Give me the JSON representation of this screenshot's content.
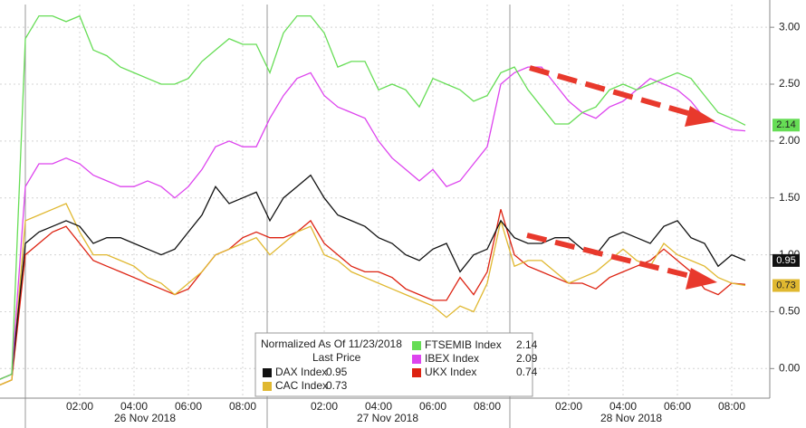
{
  "chart_data": {
    "type": "line",
    "categories": [
      null,
      null,
      null,
      null,
      null,
      null,
      "02:00",
      null,
      null,
      null,
      "04:00",
      null,
      null,
      null,
      "06:00",
      null,
      null,
      null,
      "08:00",
      null,
      null,
      null,
      null,
      null,
      "02:00",
      null,
      null,
      null,
      "04:00",
      null,
      null,
      null,
      "06:00",
      null,
      null,
      null,
      "08:00",
      null,
      null,
      null,
      null,
      null,
      "02:00",
      null,
      null,
      null,
      "04:00",
      null,
      null,
      null,
      "06:00",
      null,
      null,
      null,
      "08:00",
      null
    ],
    "dates": [
      "26 Nov 2018",
      "27 Nov 2018",
      "28 Nov 2018"
    ],
    "legend_title": "Normalized As Of 11/23/2018",
    "legend_subtitle": "Last Price",
    "series": [
      {
        "name": "FTSEMIB Index",
        "color": "#66dd55",
        "values": [
          -0.1,
          -0.05,
          2.9,
          3.1,
          3.1,
          3.05,
          3.1,
          2.8,
          2.75,
          2.65,
          2.6,
          2.55,
          2.5,
          2.5,
          2.55,
          2.7,
          2.8,
          2.9,
          2.85,
          2.85,
          2.6,
          2.95,
          3.1,
          3.1,
          2.95,
          2.65,
          2.7,
          2.7,
          2.45,
          2.5,
          2.45,
          2.3,
          2.55,
          2.5,
          2.45,
          2.35,
          2.4,
          2.6,
          2.65,
          2.45,
          2.3,
          2.15,
          2.15,
          2.25,
          2.3,
          2.45,
          2.5,
          2.45,
          2.5,
          2.55,
          2.6,
          2.55,
          2.4,
          2.25,
          2.2,
          2.14
        ]
      },
      {
        "name": "IBEX Index",
        "color": "#dd44ee",
        "values": [
          -0.1,
          -0.05,
          1.6,
          1.8,
          1.8,
          1.85,
          1.8,
          1.7,
          1.65,
          1.6,
          1.6,
          1.65,
          1.6,
          1.5,
          1.6,
          1.75,
          1.95,
          2.0,
          1.95,
          1.95,
          2.2,
          2.4,
          2.55,
          2.6,
          2.4,
          2.3,
          2.25,
          2.2,
          2.0,
          1.85,
          1.75,
          1.65,
          1.75,
          1.6,
          1.65,
          1.8,
          1.95,
          2.5,
          2.6,
          2.65,
          2.65,
          2.5,
          2.35,
          2.25,
          2.2,
          2.3,
          2.35,
          2.45,
          2.55,
          2.5,
          2.45,
          2.35,
          2.2,
          2.15,
          2.1,
          2.09
        ]
      },
      {
        "name": "DAX Index",
        "color": "#111111",
        "values": [
          -0.1,
          -0.05,
          1.1,
          1.2,
          1.25,
          1.3,
          1.25,
          1.1,
          1.15,
          1.15,
          1.1,
          1.05,
          1.0,
          1.05,
          1.2,
          1.35,
          1.6,
          1.45,
          1.5,
          1.55,
          1.3,
          1.5,
          1.6,
          1.7,
          1.5,
          1.35,
          1.3,
          1.25,
          1.15,
          1.1,
          1.0,
          0.95,
          1.05,
          1.1,
          0.85,
          1.0,
          1.05,
          1.3,
          1.15,
          1.1,
          1.1,
          1.15,
          1.15,
          1.05,
          1.0,
          1.15,
          1.2,
          1.15,
          1.1,
          1.25,
          1.3,
          1.15,
          1.1,
          0.9,
          1.0,
          0.95
        ]
      },
      {
        "name": "CAC Index",
        "color": "#e0b830",
        "values": [
          -0.15,
          -0.1,
          1.3,
          1.35,
          1.4,
          1.45,
          1.2,
          1.0,
          1.0,
          0.95,
          0.9,
          0.8,
          0.75,
          0.65,
          0.75,
          0.85,
          1.0,
          1.05,
          1.1,
          1.15,
          1.0,
          1.1,
          1.2,
          1.25,
          1.0,
          0.95,
          0.85,
          0.8,
          0.75,
          0.7,
          0.65,
          0.6,
          0.55,
          0.45,
          0.55,
          0.5,
          0.75,
          1.3,
          0.9,
          0.95,
          0.95,
          0.85,
          0.75,
          0.8,
          0.85,
          0.95,
          1.05,
          0.95,
          0.9,
          1.1,
          1.0,
          0.95,
          0.9,
          0.8,
          0.75,
          0.73
        ]
      },
      {
        "name": "UKX Index",
        "color": "#dd2211",
        "values": [
          -0.15,
          -0.1,
          1.0,
          1.1,
          1.2,
          1.25,
          1.1,
          0.95,
          0.9,
          0.85,
          0.8,
          0.75,
          0.7,
          0.65,
          0.7,
          0.85,
          1.0,
          1.05,
          1.15,
          1.2,
          1.15,
          1.15,
          1.2,
          1.3,
          1.1,
          1.0,
          0.9,
          0.85,
          0.85,
          0.8,
          0.7,
          0.65,
          0.6,
          0.6,
          0.8,
          0.65,
          0.85,
          1.4,
          1.0,
          0.9,
          0.85,
          0.8,
          0.75,
          0.75,
          0.7,
          0.8,
          0.85,
          0.9,
          0.95,
          1.05,
          0.95,
          0.85,
          0.7,
          0.65,
          0.75,
          0.74
        ]
      }
    ],
    "ylim": [
      -0.26,
      3.2
    ],
    "yticks": [
      {
        "value": 0,
        "label": "0.00"
      },
      {
        "value": 0.5,
        "label": "0.50"
      },
      {
        "value": 1,
        "label": "1.00"
      },
      {
        "value": 1.5,
        "label": "1.50"
      },
      {
        "value": 2,
        "label": "2.00"
      },
      {
        "value": 2.5,
        "label": "2.50"
      },
      {
        "value": 3,
        "label": "3.00"
      }
    ],
    "grid": true
  }
}
